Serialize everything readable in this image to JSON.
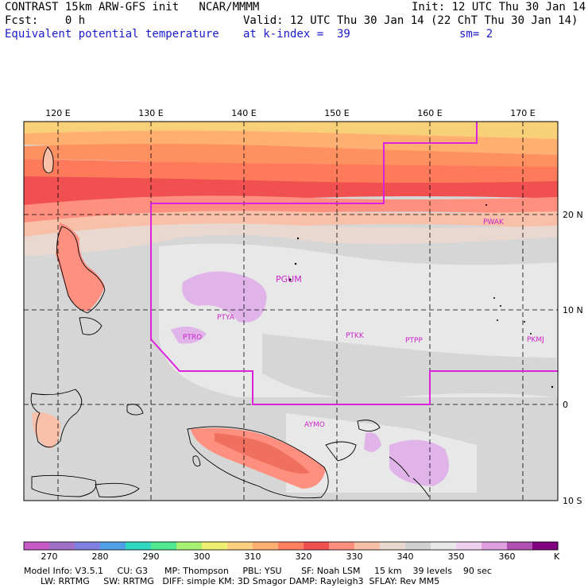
{
  "header": {
    "line1_left": "CONTRAST 15km ARW-GFS init   NCAR/MMMM",
    "line1_right": "Init: 12 UTC Thu 30 Jan 14",
    "line2_left": "Fcst:    0 h",
    "line2_right": "Valid: 12 UTC Thu 30 Jan 14 (22 ChT Thu 30 Jan 14)",
    "line3_left": "Equivalent potential temperature",
    "line3_mid": "at k-index =  39",
    "line3_right": "sm= 2"
  },
  "map": {
    "lon_labels": [
      "120 E",
      "130 E",
      "140 E",
      "150 E",
      "160 E",
      "170 E"
    ],
    "lat_labels": [
      "20 N",
      "10 N",
      "0",
      "10 S"
    ],
    "stations": [
      "PWAK",
      "PGUM",
      "PTYA",
      "PTRO",
      "PTKK",
      "PTPP",
      "PKMJ",
      "AYMO"
    ]
  },
  "colorbar": {
    "unit": "K",
    "ticks": [
      "270",
      "280",
      "290",
      "300",
      "310",
      "320",
      "330",
      "340",
      "350",
      "360"
    ],
    "colors": [
      "#c85ac8",
      "#a070c8",
      "#8080e0",
      "#50a0e8",
      "#30d8c0",
      "#50e890",
      "#a8f070",
      "#f0f070",
      "#ffd080",
      "#ffb070",
      "#ff8060",
      "#f05050",
      "#ff9080",
      "#f8c0a8",
      "#e8d8d0",
      "#d0d0d0",
      "#e8e8e8",
      "#f0d0f0",
      "#e0a0e0",
      "#b050b0",
      "#800080"
    ]
  },
  "footer": {
    "line1": "Model Info: V3.5.1     CU: G3      MP: Thompson     PBL: YSU       SF: Noah LSM     15 km    39 levels    90 sec",
    "line2": "      LW: RRTMG     SW: RRTMG   DIFF: simple KM: 3D Smagor DAMP: Rayleigh3  SFLAY: Rev MM5"
  }
}
